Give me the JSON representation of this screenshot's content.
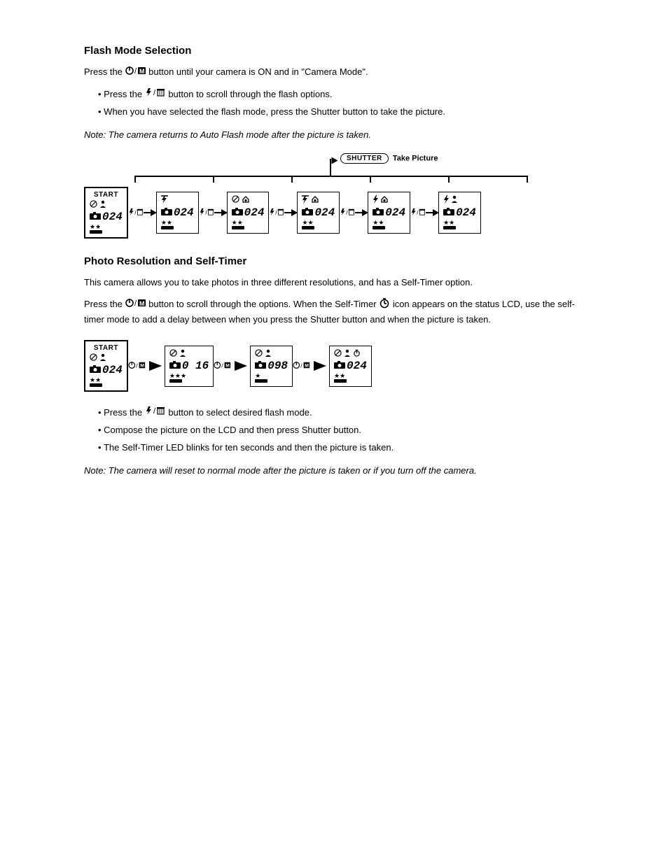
{
  "section1": {
    "heading": "Flash Mode Selection",
    "intro_prefix": "Press the ",
    "intro_mid": " button until your camera is ON and in \"Camera Mode\".",
    "bullet1_prefix": "Press the ",
    "bullet1_suffix": " button to scroll through the flash options.",
    "bullet2": "When you have selected the flash mode, press the Shutter button to take the picture.",
    "note": "Note: The camera returns to Auto Flash mode after the picture is taken.",
    "bracket_shutter": "SHUTTER",
    "bracket_take": "Take Picture",
    "states": [
      {
        "start": true,
        "row1_icons": [
          "flash-off",
          "person"
        ],
        "count": "024",
        "stars": 2
      },
      {
        "start": false,
        "row1_icons": [
          "flash-auto-bar"
        ],
        "count": "024",
        "stars": 2
      },
      {
        "start": false,
        "row1_icons": [
          "flash-off",
          "redeye"
        ],
        "count": "024",
        "stars": 2
      },
      {
        "start": false,
        "row1_icons": [
          "flash-auto-bar",
          "redeye"
        ],
        "count": "024",
        "stars": 2
      },
      {
        "start": false,
        "row1_icons": [
          "flash-on",
          "redeye"
        ],
        "count": "024",
        "stars": 2
      },
      {
        "start": false,
        "row1_icons": [
          "flash-on",
          "person"
        ],
        "count": "024",
        "stars": 2
      }
    ]
  },
  "section2": {
    "heading": "Photo Resolution and Self-Timer",
    "para1": "This camera allows you to take photos in three different resolutions, and has a Self-Timer option.",
    "para2_prefix": "Press the ",
    "para2_mid": " button to scroll through the options. ",
    "para2_timer_prefix": "When the Self-Timer ",
    "para2_timer_suffix": " icon appears on the status LCD, use the self-timer mode to add a delay between when you press the Shutter button and when the picture is taken.",
    "states": [
      {
        "start": true,
        "row1_icons": [
          "flash-off",
          "person"
        ],
        "count": "024",
        "stars": 2
      },
      {
        "start": false,
        "row1_icons": [
          "flash-off",
          "person"
        ],
        "count": "016",
        "disp": "0 16",
        "stars": 3
      },
      {
        "start": false,
        "row1_icons": [
          "flash-off",
          "person"
        ],
        "count": "098",
        "stars": 1
      },
      {
        "start": false,
        "row1_icons": [
          "flash-off",
          "person",
          "timer-sm"
        ],
        "count": "024",
        "stars": 2
      }
    ],
    "bullet1_prefix": "Press the ",
    "bullet1_suffix": " button to select desired flash mode.",
    "bullet2": "Compose the picture on the LCD and then press Shutter button.",
    "bullet3": "The Self-Timer LED blinks for ten seconds and then the picture is taken.",
    "note": "Note: The camera will reset to normal mode after the picture is taken or if you turn off the camera."
  },
  "labels": {
    "start": "START"
  },
  "icons": {
    "power_m": "power-m-icon",
    "flash_trash": "flash-trash-icon",
    "timer": "timer-icon"
  }
}
